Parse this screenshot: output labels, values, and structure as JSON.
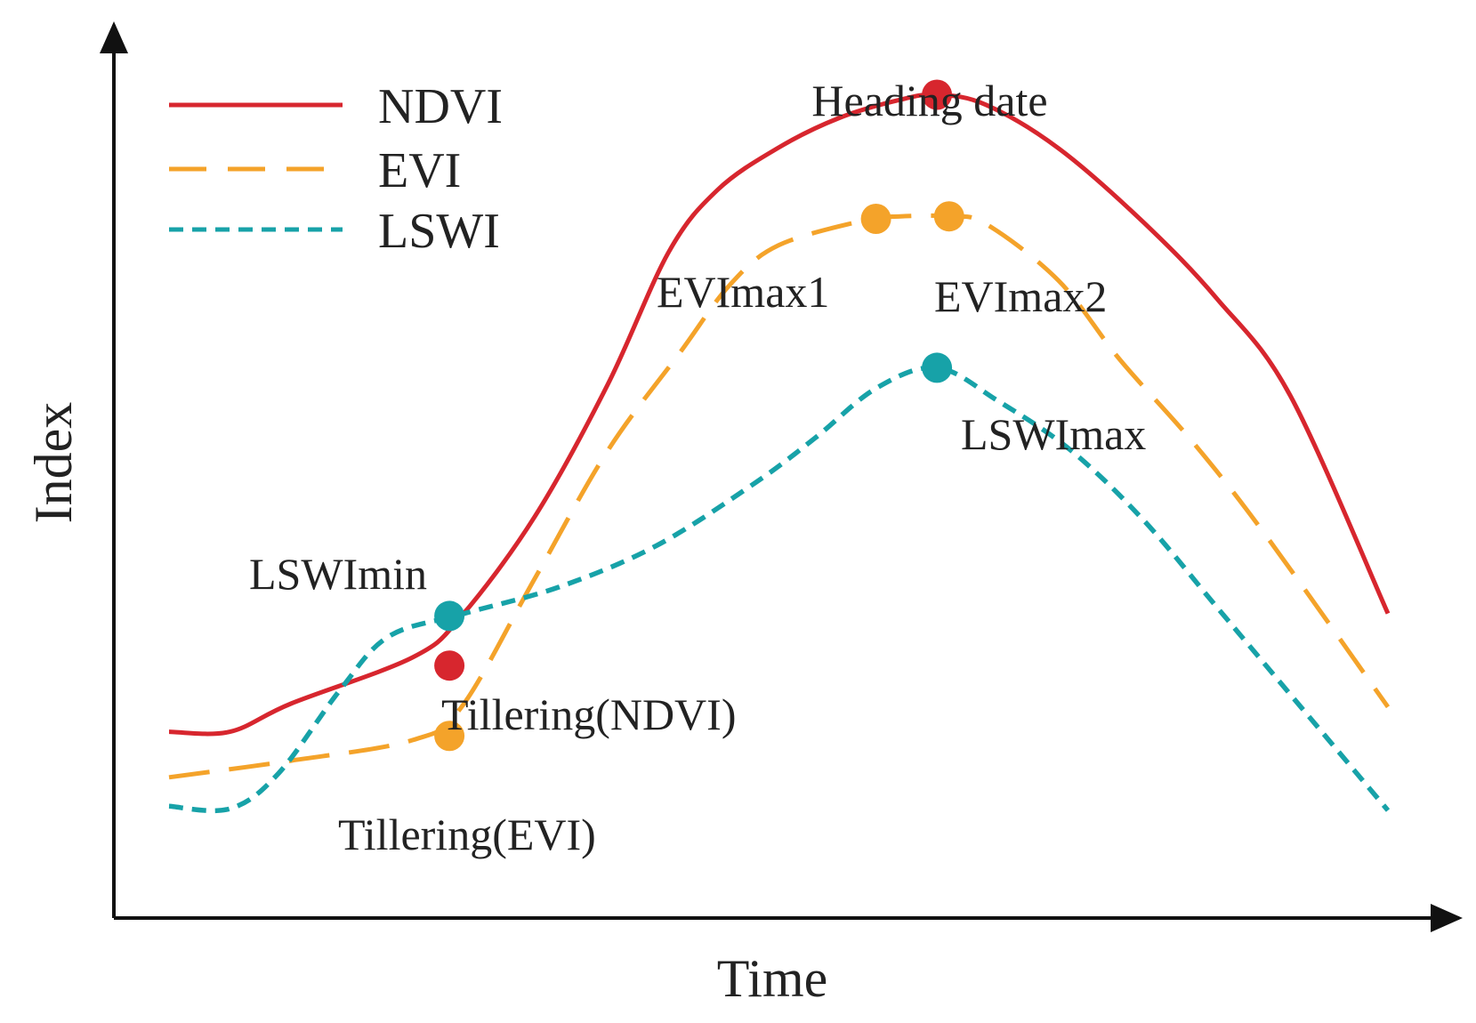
{
  "chart_data": {
    "type": "line",
    "title": "",
    "xlabel": "Time",
    "ylabel": "Index",
    "xlim": [
      0,
      100
    ],
    "ylim": [
      0,
      100
    ],
    "grid": false,
    "legend_position": "top-left",
    "axis_color": "#111111",
    "series": [
      {
        "name": "NDVI",
        "color": "#D7262E",
        "style": "solid",
        "points": [
          [
            0,
            18
          ],
          [
            5,
            18
          ],
          [
            10,
            21.4
          ],
          [
            20,
            27
          ],
          [
            24,
            32
          ],
          [
            30,
            44
          ],
          [
            36,
            60
          ],
          [
            41,
            76
          ],
          [
            45,
            83.5
          ],
          [
            50,
            88.6
          ],
          [
            55,
            92.2
          ],
          [
            60,
            94.4
          ],
          [
            63,
            95
          ],
          [
            67,
            93.8
          ],
          [
            73,
            88.5
          ],
          [
            80,
            79.5
          ],
          [
            86,
            70.3
          ],
          [
            92,
            58.6
          ],
          [
            100,
            32.3
          ]
        ]
      },
      {
        "name": "EVI",
        "color": "#F4A32A",
        "style": "dashed",
        "points": [
          [
            0,
            12.5
          ],
          [
            10,
            14.5
          ],
          [
            20,
            17
          ],
          [
            24,
            21
          ],
          [
            30,
            36.5
          ],
          [
            36,
            52
          ],
          [
            42,
            64
          ],
          [
            46,
            72
          ],
          [
            50,
            76.8
          ],
          [
            57,
            79.8
          ],
          [
            60,
            80.3
          ],
          [
            64,
            80.3
          ],
          [
            67,
            79.4
          ],
          [
            73,
            72.5
          ],
          [
            78,
            63
          ],
          [
            84,
            53
          ],
          [
            90,
            41.7
          ],
          [
            100,
            21
          ]
        ]
      },
      {
        "name": "LSWI",
        "color": "#17A2A8",
        "style": "dotted-dash",
        "points": [
          [
            0,
            9
          ],
          [
            5,
            8.7
          ],
          [
            9,
            13
          ],
          [
            14,
            23
          ],
          [
            18,
            29.5
          ],
          [
            24,
            32.2
          ],
          [
            32,
            35.5
          ],
          [
            40,
            40.5
          ],
          [
            48,
            48
          ],
          [
            53,
            53.5
          ],
          [
            58,
            59.5
          ],
          [
            63,
            62
          ],
          [
            68,
            58
          ],
          [
            74,
            52
          ],
          [
            80,
            43.5
          ],
          [
            86,
            33
          ],
          [
            92,
            22.5
          ],
          [
            100,
            8.5
          ]
        ]
      }
    ],
    "annotations": [
      {
        "label": "Heading date",
        "series": "NDVI",
        "x": 63,
        "y": 95,
        "color": "#D7262E"
      },
      {
        "label": "Tillering(NDVI)",
        "series": "NDVI",
        "x": 23,
        "y": 26,
        "color": "#D7262E"
      },
      {
        "label": "EVImax1",
        "series": "EVI",
        "x": 58,
        "y": 80,
        "color": "#F4A32A"
      },
      {
        "label": "EVImax2",
        "series": "EVI",
        "x": 64,
        "y": 80.3,
        "color": "#F4A32A"
      },
      {
        "label": "Tillering(EVI)",
        "series": "EVI",
        "x": 23,
        "y": 17.5,
        "color": "#F4A32A"
      },
      {
        "label": "LSWImax",
        "series": "LSWI",
        "x": 63,
        "y": 62,
        "color": "#17A2A8"
      },
      {
        "label": "LSWImin",
        "series": "LSWI",
        "x": 23,
        "y": 32,
        "color": "#17A2A8"
      }
    ]
  }
}
